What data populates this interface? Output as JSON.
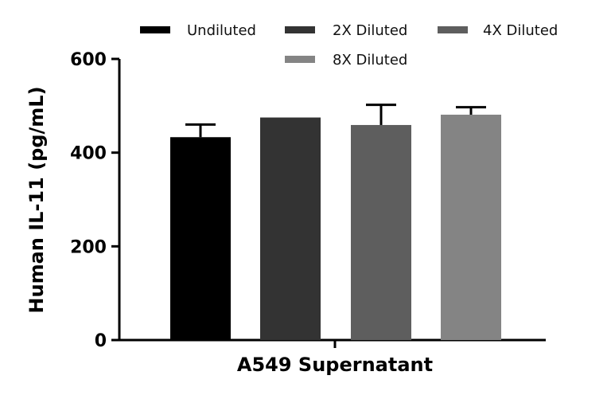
{
  "chart_data": {
    "type": "bar",
    "categories": [
      "A549 Supernatant"
    ],
    "series": [
      {
        "name": "Undiluted",
        "values": [
          433
        ],
        "error": [
          27
        ],
        "color": "#000000"
      },
      {
        "name": "2X Diluted",
        "values": [
          475
        ],
        "error": [
          0
        ],
        "color": "#333333"
      },
      {
        "name": "4X Diluted",
        "values": [
          459
        ],
        "error": [
          43
        ],
        "color": "#5e5e5e"
      },
      {
        "name": "8X Diluted",
        "values": [
          481
        ],
        "error": [
          16
        ],
        "color": "#848484"
      }
    ],
    "title": "",
    "xlabel": "A549 Supernatant",
    "ylabel": "Human IL-11 (pg/mL)",
    "ylim": [
      0,
      600
    ],
    "yticks": [
      "0",
      "200",
      "400",
      "600"
    ],
    "grid": false,
    "legend_position": "top"
  }
}
